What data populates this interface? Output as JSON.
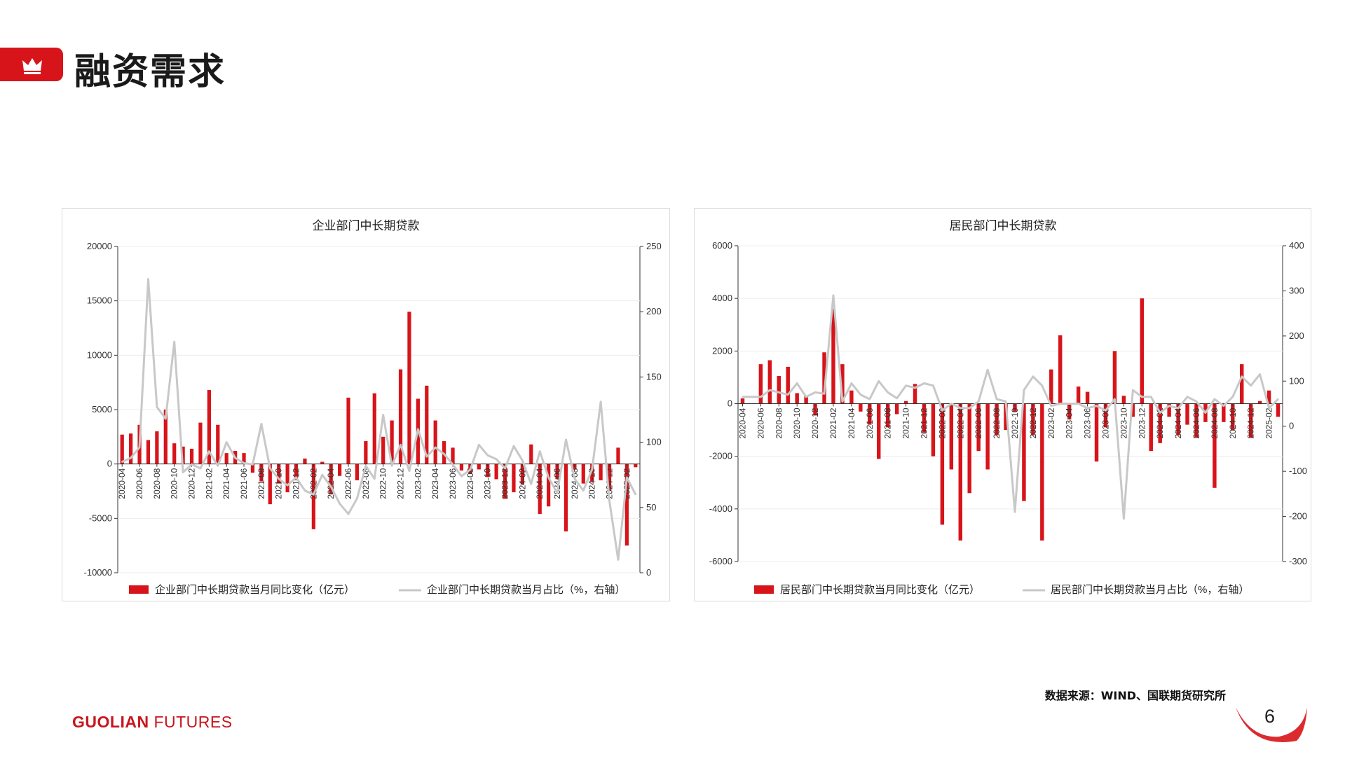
{
  "header": {
    "title": "融资需求",
    "icon": "crown-icon",
    "accent": "#d7141a"
  },
  "footer": {
    "source": "数据来源：WIND、国联期货研究所",
    "brand_bold": "GUOLIAN",
    "brand_light": " FUTURES",
    "page_number": "6"
  },
  "colors": {
    "bar": "#d7141a",
    "line": "#c8c8c8"
  },
  "chart_data": [
    {
      "type": "bar+line",
      "title": "企业部门中长期贷款",
      "left_ylim": [
        -10000,
        20000
      ],
      "left_ticks": [
        "20000",
        "15000",
        "10000",
        "5000",
        "0",
        "-5000",
        "-10000"
      ],
      "right_ylim": [
        0,
        250
      ],
      "right_ticks": [
        "250",
        "200",
        "150",
        "100",
        "50",
        "0"
      ],
      "x_tick_labels": [
        "2020-04",
        "2020-06",
        "2020-08",
        "2020-10",
        "2020-12",
        "2021-02",
        "2021-04",
        "2021-06",
        "2021-08",
        "2021-10",
        "2021-12",
        "2022-02",
        "2022-04",
        "2022-06",
        "2022-08",
        "2022-10",
        "2022-12",
        "2023-02",
        "2023-04",
        "2023-06",
        "2023-08",
        "2023-10",
        "2023-12",
        "2024-02",
        "2024-04",
        "2024-06",
        "2024-08",
        "2024-10",
        "2024-12",
        "2025-02"
      ],
      "series": [
        {
          "name": "企业部门中长期贷款当月同比变化（亿元）",
          "axis": "left",
          "type": "bar",
          "values": [
            2700,
            2800,
            3600,
            2200,
            3000,
            5000,
            1900,
            1600,
            1400,
            3800,
            6800,
            3600,
            1000,
            1200,
            1000,
            -800,
            -1600,
            -3700,
            -1800,
            -2600,
            -1500,
            500,
            -6000,
            200,
            -2800,
            -1100,
            6100,
            -1500,
            2100,
            6500,
            2500,
            4000,
            8700,
            14000,
            6000,
            7200,
            4000,
            2100,
            1500,
            -600,
            -900,
            -500,
            -1200,
            -1400,
            -3200,
            -2600,
            -1900,
            1800,
            -4600,
            -3900,
            -1400,
            -6200,
            -500,
            -1800,
            -1600,
            -1500,
            -2400,
            1500,
            -7500,
            -300
          ]
        },
        {
          "name": "企业部门中长期贷款当月占比（%，右轴）",
          "axis": "right",
          "type": "line",
          "values": [
            85,
            88,
            96,
            225,
            127,
            118,
            177,
            77,
            83,
            80,
            93,
            82,
            100,
            88,
            84,
            83,
            114,
            80,
            72,
            67,
            73,
            63,
            60,
            75,
            66,
            53,
            45,
            57,
            82,
            72,
            121,
            82,
            98,
            78,
            110,
            89,
            96,
            91,
            83,
            74,
            79,
            98,
            90,
            87,
            80,
            97,
            86,
            68,
            93,
            73,
            61,
            102,
            72,
            63,
            79,
            131,
            55,
            10,
            73,
            60
          ]
        }
      ]
    },
    {
      "type": "bar+line",
      "title": "居民部门中长期贷款",
      "left_ylim": [
        -6000,
        6000
      ],
      "left_ticks": [
        "6000",
        "4000",
        "2000",
        "0",
        "-2000",
        "-4000",
        "-6000"
      ],
      "right_ylim": [
        -300,
        400
      ],
      "right_ticks": [
        "400",
        "300",
        "200",
        "100",
        "0",
        "-100",
        "-200",
        "-300"
      ],
      "x_tick_labels": [
        "2020-04",
        "2020-06",
        "2020-08",
        "2020-10",
        "2020-12",
        "2021-02",
        "2021-04",
        "2021-06",
        "2021-08",
        "2021-10",
        "2021-12",
        "2022-02",
        "2022-04",
        "2022-06",
        "2022-08",
        "2022-10",
        "2022-12",
        "2023-02",
        "2023-04",
        "2023-06",
        "2023-08",
        "2023-10",
        "2023-12",
        "2024-02",
        "2024-04",
        "2024-06",
        "2024-08",
        "2024-10",
        "2024-12",
        "2025-02"
      ],
      "series": [
        {
          "name": "居民部门中长期贷款当月同比变化（亿元）",
          "axis": "left",
          "type": "bar",
          "values": [
            200,
            0,
            1500,
            1650,
            1050,
            1400,
            400,
            300,
            -450,
            1950,
            3600,
            1500,
            500,
            -300,
            -800,
            -2100,
            -900,
            -400,
            100,
            750,
            -1100,
            -2000,
            -4600,
            -2500,
            -5200,
            -3400,
            -1800,
            -2500,
            -1200,
            -1000,
            -300,
            -3700,
            -1200,
            -5200,
            1300,
            2600,
            -600,
            650,
            450,
            -2200,
            -900,
            2000,
            300,
            -500,
            4000,
            -1800,
            -1500,
            -500,
            -1200,
            -800,
            -1300,
            -700,
            -3200,
            -700,
            -1000,
            1500,
            -1300,
            100,
            500,
            -500
          ]
        },
        {
          "name": "居民部门中长期贷款当月占比（%，右轴）",
          "axis": "right",
          "type": "line",
          "values": [
            65,
            65,
            65,
            80,
            75,
            70,
            95,
            65,
            75,
            72,
            290,
            55,
            95,
            70,
            60,
            100,
            75,
            62,
            90,
            85,
            95,
            90,
            35,
            50,
            40,
            40,
            55,
            125,
            60,
            55,
            -190,
            80,
            110,
            90,
            45,
            50,
            50,
            50,
            40,
            45,
            35,
            60,
            -205,
            80,
            65,
            65,
            30,
            45,
            40,
            65,
            55,
            30,
            60,
            45,
            65,
            110,
            90,
            115,
            40,
            60
          ]
        }
      ]
    }
  ]
}
